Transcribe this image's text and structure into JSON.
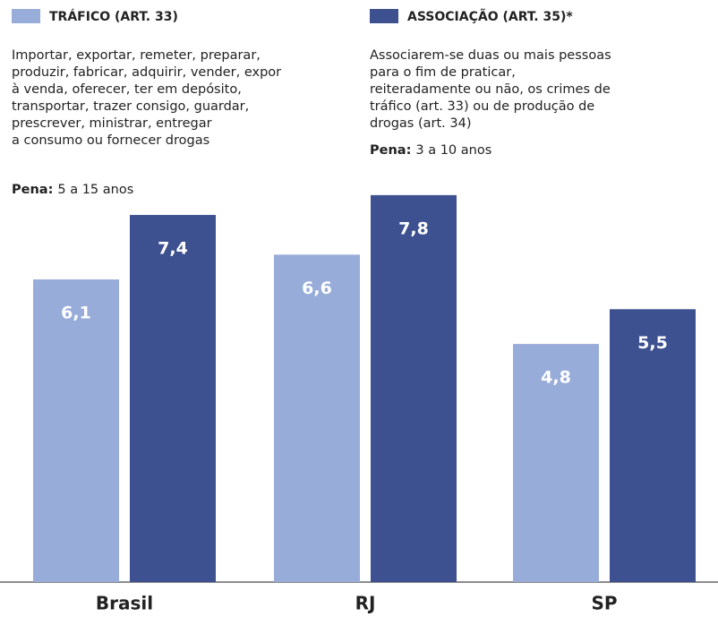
{
  "chart_data": {
    "type": "bar",
    "categories": [
      "Brasil",
      "RJ",
      "SP"
    ],
    "series": [
      {
        "name": "TRÁFICO (ART. 33)",
        "color": "#98acd9",
        "description": [
          "Importar, exportar, remeter, preparar,",
          "produzir, fabricar, adquirir, vender, expor",
          "à venda, oferecer, ter em depósito,",
          "transportar, trazer consigo, guardar,",
          "prescrever, ministrar, entregar",
          "a consumo ou fornecer drogas"
        ],
        "penalty_label": "Pena:",
        "penalty": "5 a 15 anos",
        "values": [
          6.1,
          6.6,
          4.8
        ],
        "value_labels": [
          "6,1",
          "6,6",
          "4,8"
        ]
      },
      {
        "name": "ASSOCIAÇÃO (ART. 35)*",
        "color": "#3d5190",
        "description": [
          "Associarem-se duas ou mais pessoas",
          "para o fim de praticar,",
          "reiteradamente ou não, os crimes de",
          "tráfico (art. 33) ou de produção de",
          "drogas (art. 34)"
        ],
        "penalty_label": "Pena:",
        "penalty": "3 a 10 anos",
        "values": [
          7.4,
          7.8,
          5.5
        ],
        "value_labels": [
          "7,4",
          "7,8",
          "5,5"
        ]
      }
    ]
  }
}
